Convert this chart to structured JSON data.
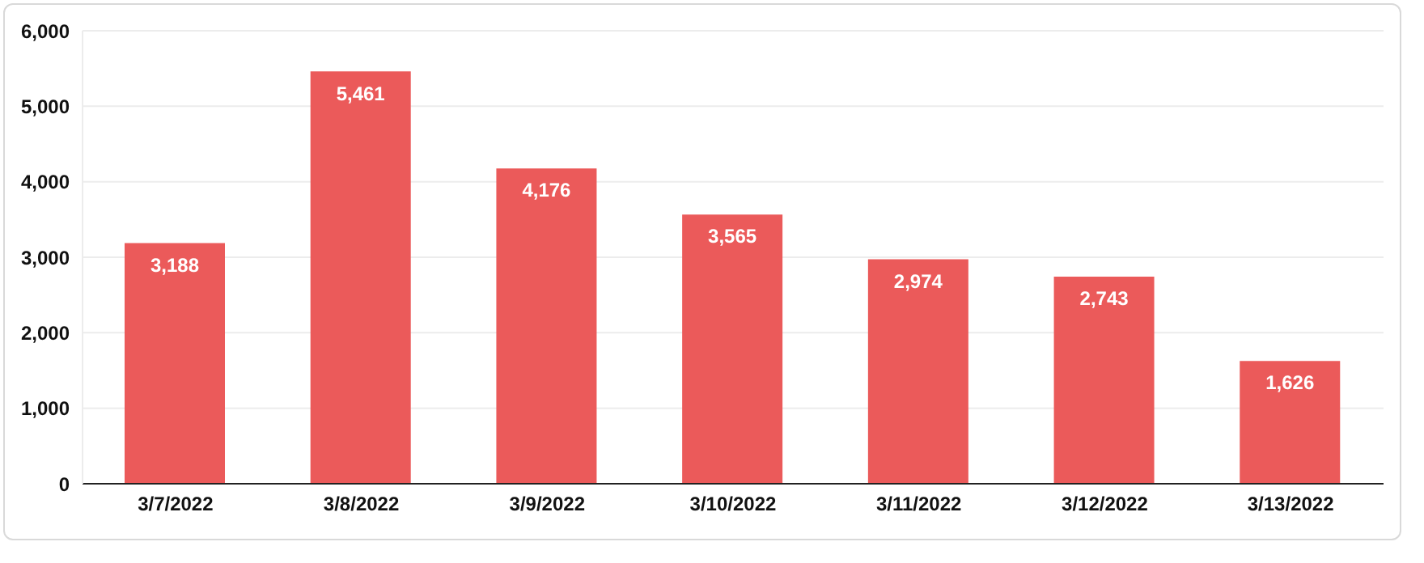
{
  "chart_data": {
    "type": "bar",
    "categories": [
      "3/7/2022",
      "3/8/2022",
      "3/9/2022",
      "3/10/2022",
      "3/11/2022",
      "3/12/2022",
      "3/13/2022"
    ],
    "values": [
      3188,
      5461,
      4176,
      3565,
      2974,
      2743,
      1626
    ],
    "value_labels": [
      "3,188",
      "5,461",
      "4,176",
      "3,565",
      "2,974",
      "2,743",
      "1,626"
    ],
    "color": "#eb5a5a",
    "ylim": [
      0,
      6000
    ],
    "yticks": [
      0,
      {
        "value": 1000,
        "label": "1,000"
      },
      {
        "value": 2000,
        "label": "2,000"
      },
      {
        "value": 3000,
        "label": "3,000"
      },
      {
        "value": 4000,
        "label": "4,000"
      },
      {
        "value": 5000,
        "label": "5,000"
      },
      {
        "value": 6000,
        "label": "6,000"
      }
    ],
    "grid": "y"
  }
}
